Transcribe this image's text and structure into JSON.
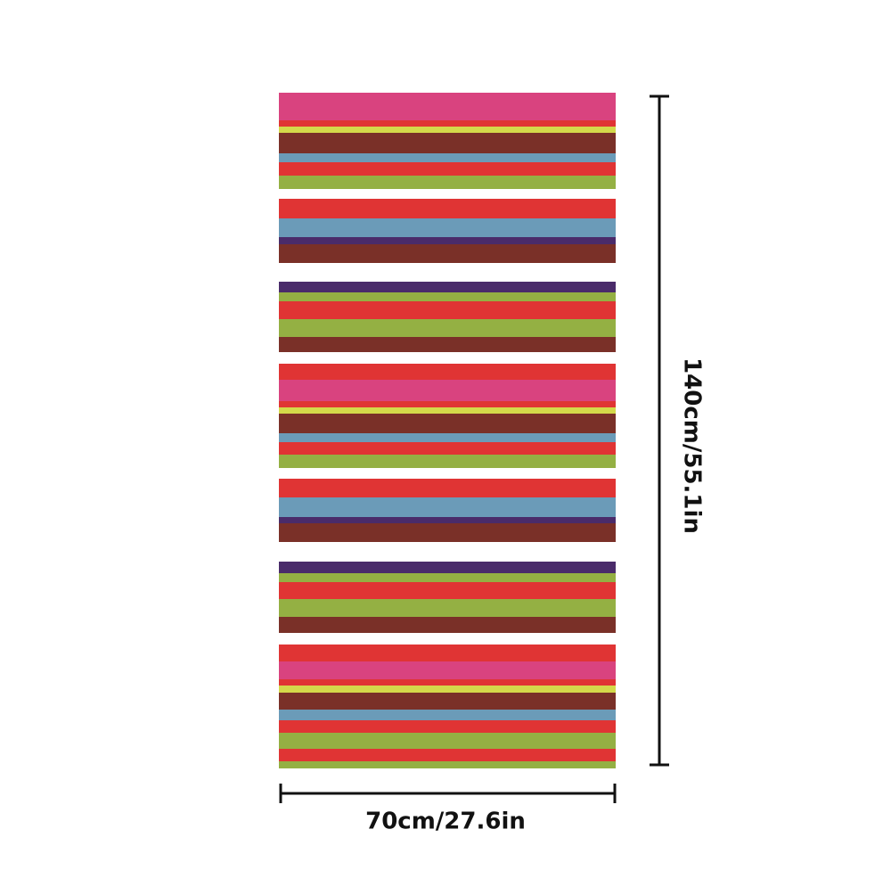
{
  "width_label": "70cm/27.6in",
  "height_label": "140cm/55.1in"
}
